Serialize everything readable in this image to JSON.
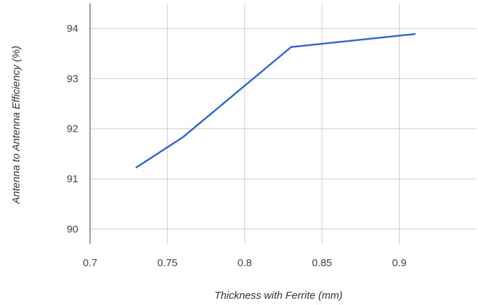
{
  "chart_data": {
    "type": "line",
    "title": "",
    "xlabel": "Thickness with Ferrite (mm)",
    "ylabel": "Antenna to Antenna Efficiency (%)",
    "xlim": [
      0.7,
      0.95
    ],
    "ylim": [
      89.7,
      94.5
    ],
    "x_ticks": [
      0.7,
      0.75,
      0.8,
      0.85,
      0.9
    ],
    "x_tick_labels": [
      "0.7",
      "0.75",
      "0.8",
      "0.85",
      "0.9"
    ],
    "y_ticks": [
      90,
      91,
      92,
      93,
      94
    ],
    "y_tick_labels": [
      "90",
      "91",
      "92",
      "93",
      "94"
    ],
    "grid": true,
    "legend": "none",
    "series": [
      {
        "color": "#3366cc",
        "points": [
          {
            "x": 0.73,
            "y": 91.23
          },
          {
            "x": 0.76,
            "y": 91.83
          },
          {
            "x": 0.83,
            "y": 93.63
          },
          {
            "x": 0.91,
            "y": 93.89
          }
        ]
      }
    ],
    "colors": {
      "grid": "#cccccc",
      "baseline": "#333333"
    }
  }
}
